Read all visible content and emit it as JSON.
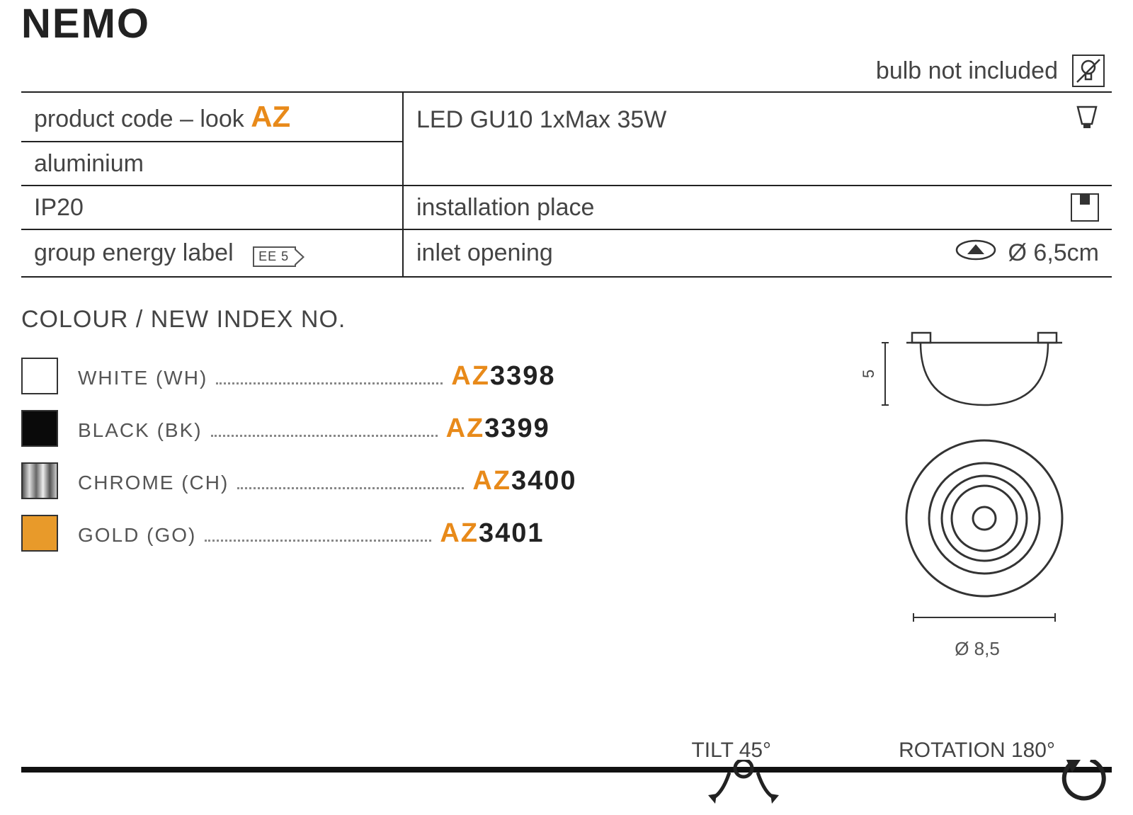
{
  "title": "NEMO",
  "note": "bulb not included",
  "spec": {
    "productCodeLabel": "product code – look",
    "productCodeSuffix": "AZ",
    "bulb": "LED GU10 1xMax 35W",
    "material": "aluminium",
    "ip": "IP20",
    "installLabel": "installation place",
    "energyLabel": "group energy label",
    "energyBadge": "EE 5",
    "inletLabel": "inlet opening",
    "inletValue": "Ø 6,5cm"
  },
  "colourHeading": "COLOUR / NEW INDEX NO.",
  "colours": [
    {
      "name": "WHITE (WH)",
      "swatch": "#ffffff",
      "codePrefix": "AZ",
      "codeNum": "3398",
      "chrome": false
    },
    {
      "name": "BLACK (BK)",
      "swatch": "#0a0a0a",
      "codePrefix": "AZ",
      "codeNum": "3399",
      "chrome": false
    },
    {
      "name": "CHROME (CH)",
      "swatch": "",
      "codePrefix": "AZ",
      "codeNum": "3400",
      "chrome": true
    },
    {
      "name": "GOLD (GO)",
      "swatch": "#e89a2a",
      "codePrefix": "AZ",
      "codeNum": "3401",
      "chrome": false
    }
  ],
  "diagram": {
    "heightLabel": "5",
    "diameterLabel": "Ø 8,5"
  },
  "bottom": {
    "tilt": "TILT 45°",
    "rotation": "ROTATION 180°"
  },
  "colors": {
    "accent": "#e88a1a",
    "text": "#444444",
    "line": "#222222"
  }
}
